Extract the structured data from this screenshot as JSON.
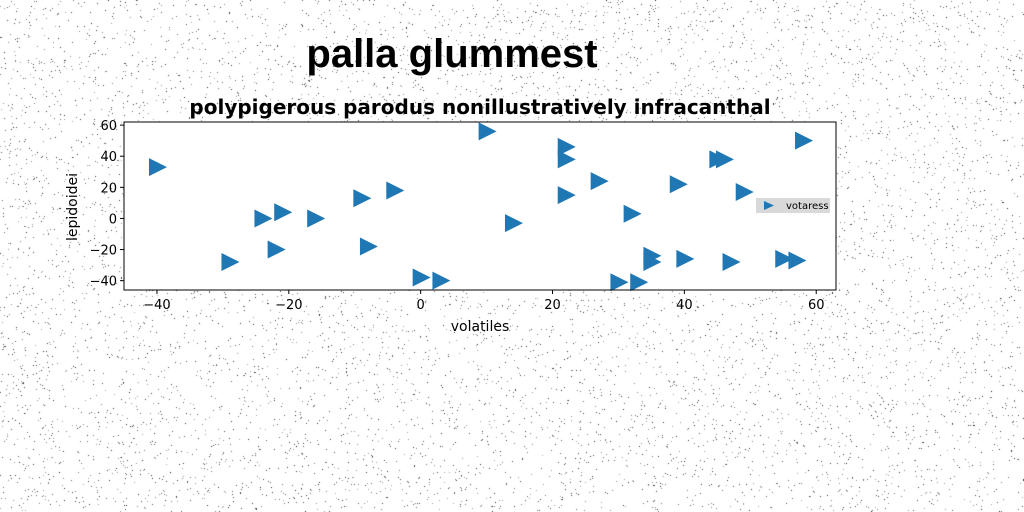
{
  "suptitle": "palla glummest",
  "chart_data": {
    "type": "scatter",
    "title": "polypigerous parodus nonillustratively infracanthal",
    "xlabel": "volatiles",
    "ylabel": "lepidoidei",
    "xlim": [
      -45,
      63
    ],
    "ylim": [
      -46,
      62
    ],
    "xticks": [
      -40,
      -20,
      0,
      20,
      40,
      60
    ],
    "yticks": [
      -40,
      -20,
      0,
      20,
      40,
      60
    ],
    "grid": false,
    "legend_position": "center-right",
    "marker": "triangle-right",
    "series": [
      {
        "name": "votaress",
        "color": "#1f77b4",
        "points": [
          {
            "x": -40,
            "y": 33
          },
          {
            "x": 10,
            "y": 56
          },
          {
            "x": 58,
            "y": 50
          },
          {
            "x": 22,
            "y": 46
          },
          {
            "x": 22,
            "y": 38
          },
          {
            "x": 45,
            "y": 38
          },
          {
            "x": 46,
            "y": 38
          },
          {
            "x": 27,
            "y": 24
          },
          {
            "x": 39,
            "y": 22
          },
          {
            "x": -4,
            "y": 18
          },
          {
            "x": 49,
            "y": 17
          },
          {
            "x": 22,
            "y": 15
          },
          {
            "x": -9,
            "y": 13
          },
          {
            "x": -21,
            "y": 4
          },
          {
            "x": -24,
            "y": 0
          },
          {
            "x": -16,
            "y": 0
          },
          {
            "x": 32,
            "y": 3
          },
          {
            "x": 14,
            "y": -3
          },
          {
            "x": -8,
            "y": -18
          },
          {
            "x": -22,
            "y": -20
          },
          {
            "x": -29,
            "y": -28
          },
          {
            "x": 35,
            "y": -24
          },
          {
            "x": 35,
            "y": -28
          },
          {
            "x": 40,
            "y": -26
          },
          {
            "x": 47,
            "y": -28
          },
          {
            "x": 55,
            "y": -26
          },
          {
            "x": 57,
            "y": -27
          },
          {
            "x": 0,
            "y": -38
          },
          {
            "x": 3,
            "y": -40
          },
          {
            "x": 30,
            "y": -41
          },
          {
            "x": 33,
            "y": -41
          }
        ]
      }
    ]
  }
}
